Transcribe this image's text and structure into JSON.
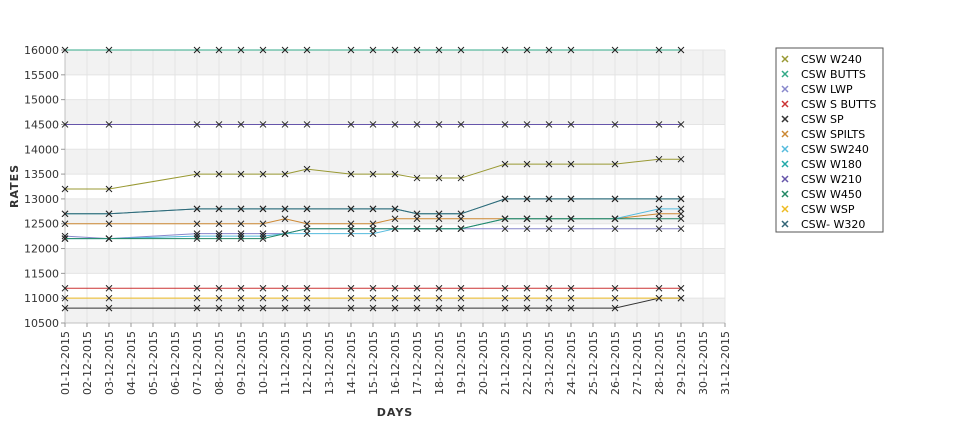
{
  "chart_data": {
    "type": "line",
    "xlabel": "DAYS",
    "ylabel": "RATES",
    "ylim": [
      10500,
      16000
    ],
    "yticks": [
      10500,
      11000,
      11500,
      12000,
      12500,
      13000,
      13500,
      14000,
      14500,
      15000,
      15500,
      16000
    ],
    "x_tick_labels": [
      "01-12-2015",
      "02-12-2015",
      "03-12-2015",
      "04-12-2015",
      "05-12-2015",
      "06-12-2015",
      "07-12-2015",
      "08-12-2015",
      "09-12-2015",
      "10-12-2015",
      "11-12-2015",
      "12-12-2015",
      "13-12-2015",
      "14-12-2015",
      "15-12-2015",
      "16-12-2015",
      "17-12-2015",
      "18-12-2015",
      "19-12-2015",
      "20-12-2015",
      "21-12-2015",
      "22-12-2015",
      "23-12-2015",
      "24-12-2015",
      "25-12-2015",
      "26-12-2015",
      "27-12-2015",
      "28-12-2015",
      "29-12-2015",
      "30-12-2015",
      "31-12-2015"
    ],
    "x": [
      "01-12-2015",
      "03-12-2015",
      "07-12-2015",
      "08-12-2015",
      "09-12-2015",
      "10-12-2015",
      "11-12-2015",
      "12-12-2015",
      "14-12-2015",
      "15-12-2015",
      "16-12-2015",
      "17-12-2015",
      "18-12-2015",
      "19-12-2015",
      "21-12-2015",
      "22-12-2015",
      "23-12-2015",
      "24-12-2015",
      "26-12-2015",
      "28-12-2015",
      "29-12-2015"
    ],
    "grid": true,
    "alternating_bands": true,
    "legend_position": "right",
    "series": [
      {
        "name": "CSW  W240",
        "color": "#999933",
        "values": [
          13200,
          13200,
          13500,
          13500,
          13500,
          13500,
          13500,
          13600,
          13500,
          13500,
          13500,
          13420,
          13420,
          13420,
          13700,
          13700,
          13700,
          13700,
          13700,
          13800,
          13800
        ]
      },
      {
        "name": "CSW BUTTS",
        "color": "#33aa88",
        "values": [
          16000,
          16000,
          16000,
          16000,
          16000,
          16000,
          16000,
          16000,
          16000,
          16000,
          16000,
          16000,
          16000,
          16000,
          16000,
          16000,
          16000,
          16000,
          16000,
          16000,
          16000
        ]
      },
      {
        "name": "CSW LWP",
        "color": "#8888cc",
        "values": [
          12250,
          12200,
          12300,
          12300,
          12300,
          12300,
          12300,
          12400,
          12400,
          12400,
          12400,
          12400,
          12400,
          12400,
          12400,
          12400,
          12400,
          12400,
          12400,
          12400,
          12400
        ]
      },
      {
        "name": "CSW S BUTTS",
        "color": "#cc3333",
        "values": [
          11200,
          11200,
          11200,
          11200,
          11200,
          11200,
          11200,
          11200,
          11200,
          11200,
          11200,
          11200,
          11200,
          11200,
          11200,
          11200,
          11200,
          11200,
          11200,
          11200,
          11200
        ]
      },
      {
        "name": "CSW SP",
        "color": "#333333",
        "values": [
          10800,
          10800,
          10800,
          10800,
          10800,
          10800,
          10800,
          10800,
          10800,
          10800,
          10800,
          10800,
          10800,
          10800,
          10800,
          10800,
          10800,
          10800,
          10800,
          11000,
          11000
        ]
      },
      {
        "name": "CSW SPILTS",
        "color": "#cc8833",
        "values": [
          12500,
          12500,
          12500,
          12500,
          12500,
          12500,
          12600,
          12500,
          12500,
          12500,
          12600,
          12600,
          12600,
          12600,
          12600,
          12600,
          12600,
          12600,
          12600,
          12700,
          12700
        ]
      },
      {
        "name": "CSW SW240",
        "color": "#55bbdd",
        "values": [
          12200,
          12200,
          12250,
          12250,
          12250,
          12250,
          12300,
          12300,
          12300,
          12300,
          12400,
          12400,
          12400,
          12400,
          12600,
          12600,
          12600,
          12600,
          12600,
          12800,
          12800
        ]
      },
      {
        "name": "CSW W180",
        "color": "#22aaaa",
        "values": [
          12700,
          12700,
          12800,
          12800,
          12800,
          12800,
          12800,
          12800,
          12800,
          12800,
          12800,
          12700,
          12700,
          12700,
          13000,
          13000,
          13000,
          13000,
          13000,
          13000,
          13000
        ]
      },
      {
        "name": "CSW W210",
        "color": "#6655aa",
        "values": [
          14500,
          14500,
          14500,
          14500,
          14500,
          14500,
          14500,
          14500,
          14500,
          14500,
          14500,
          14500,
          14500,
          14500,
          14500,
          14500,
          14500,
          14500,
          14500,
          14500,
          14500
        ]
      },
      {
        "name": "CSW W450",
        "color": "#228866",
        "values": [
          12200,
          12200,
          12200,
          12200,
          12200,
          12200,
          12300,
          12400,
          12400,
          12400,
          12400,
          12400,
          12400,
          12400,
          12600,
          12600,
          12600,
          12600,
          12600,
          12600,
          12600
        ]
      },
      {
        "name": "CSW WSP",
        "color": "#eebb22",
        "values": [
          11000,
          11000,
          11000,
          11000,
          11000,
          11000,
          11000,
          11000,
          11000,
          11000,
          11000,
          11000,
          11000,
          11000,
          11000,
          11000,
          11000,
          11000,
          11000,
          11000,
          11000
        ]
      },
      {
        "name": "CSW- W320",
        "color": "#336677",
        "values": [
          12700,
          12700,
          12800,
          12800,
          12800,
          12800,
          12800,
          12800,
          12800,
          12800,
          12800,
          12700,
          12700,
          12700,
          13000,
          13000,
          13000,
          13000,
          13000,
          13000,
          13000
        ]
      }
    ]
  }
}
